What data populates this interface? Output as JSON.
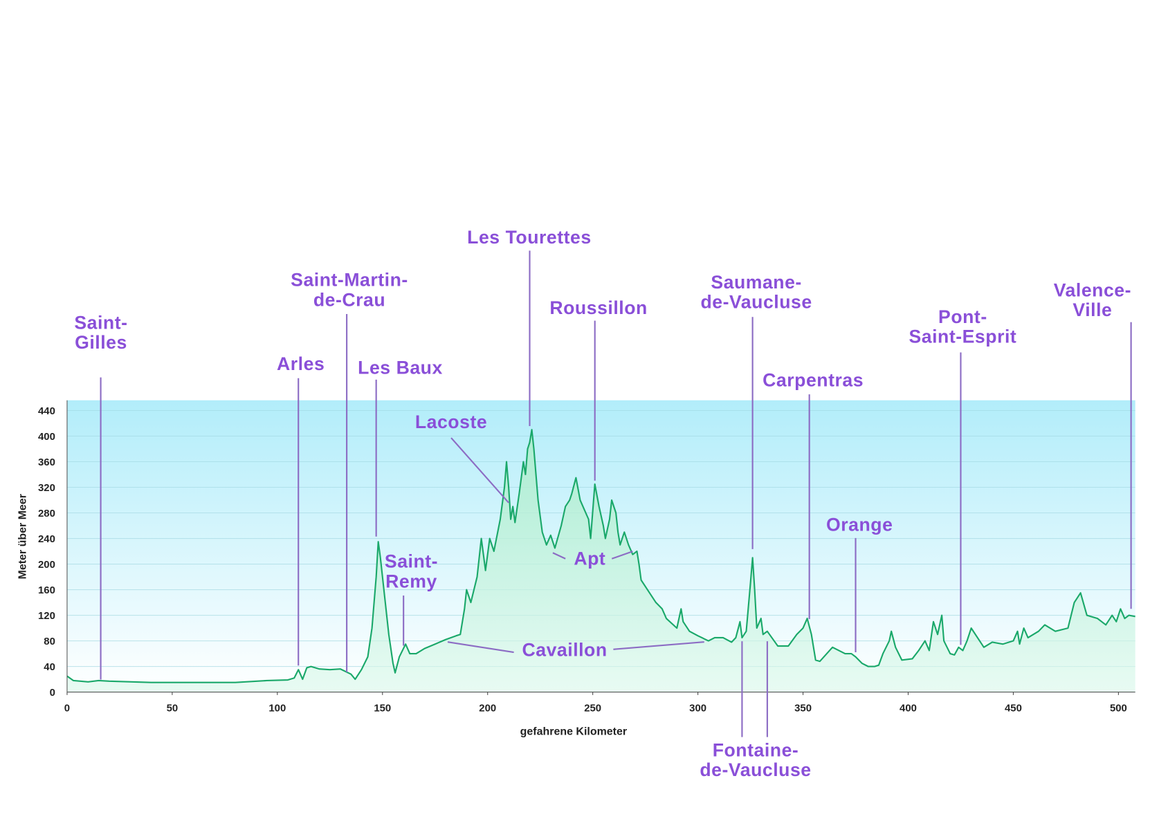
{
  "chart_data": {
    "type": "area",
    "x_label": "gefahrene Kilometer",
    "y_label": "Meter über Meer",
    "xlim": [
      0,
      508
    ],
    "ylim": [
      0,
      456
    ],
    "xticks": [
      0,
      50,
      100,
      150,
      200,
      250,
      300,
      350,
      400,
      450,
      500
    ],
    "yticks": [
      0,
      40,
      80,
      120,
      160,
      200,
      240,
      280,
      320,
      360,
      400,
      440
    ],
    "grid": true,
    "color": "#1aa86a",
    "x": [
      0,
      3,
      10,
      15,
      20,
      40,
      60,
      80,
      95,
      105,
      108,
      110,
      112,
      114,
      116,
      120,
      125,
      130,
      135,
      137,
      140,
      143,
      145,
      147,
      148,
      149,
      151,
      153,
      155,
      156,
      158,
      161,
      163,
      166,
      170,
      175,
      180,
      185,
      187,
      189,
      190,
      192,
      195,
      197,
      199,
      201,
      203,
      206,
      208,
      209,
      210,
      211,
      212,
      213,
      215,
      217,
      218,
      219,
      220,
      221,
      222,
      224,
      226,
      228,
      230,
      232,
      235,
      237,
      239,
      240,
      242,
      244,
      246,
      248,
      249,
      251,
      253,
      255,
      256,
      258,
      259,
      261,
      262,
      263,
      265,
      267,
      269,
      271,
      272,
      273,
      276,
      280,
      283,
      285,
      290,
      292,
      293,
      296,
      300,
      305,
      308,
      312,
      316,
      318,
      320,
      321,
      323,
      325,
      326,
      327,
      328,
      330,
      331,
      333,
      338,
      343,
      347,
      350,
      352,
      354,
      356,
      358,
      364,
      370,
      373,
      375,
      378,
      381,
      384,
      386,
      388,
      391,
      392,
      394,
      397,
      402,
      405,
      408,
      410,
      412,
      414,
      416,
      417,
      420,
      422,
      424,
      426,
      428,
      430,
      434,
      436,
      440,
      445,
      450,
      452,
      453,
      455,
      457,
      462,
      465,
      470,
      476,
      479,
      482,
      485,
      490,
      494,
      497,
      499,
      501,
      503,
      505,
      508
    ],
    "values": [
      25,
      18,
      16,
      18,
      17,
      15,
      15,
      15,
      18,
      19,
      22,
      35,
      20,
      38,
      40,
      36,
      35,
      36,
      28,
      20,
      35,
      55,
      100,
      180,
      235,
      210,
      150,
      90,
      45,
      30,
      55,
      75,
      60,
      60,
      68,
      75,
      82,
      88,
      90,
      130,
      160,
      140,
      180,
      240,
      190,
      240,
      220,
      270,
      320,
      360,
      320,
      270,
      290,
      265,
      310,
      360,
      340,
      380,
      390,
      410,
      380,
      300,
      250,
      230,
      245,
      225,
      260,
      290,
      300,
      310,
      335,
      300,
      285,
      270,
      240,
      325,
      290,
      260,
      240,
      270,
      300,
      280,
      250,
      230,
      250,
      230,
      215,
      220,
      200,
      175,
      160,
      140,
      130,
      115,
      100,
      130,
      110,
      95,
      88,
      80,
      85,
      85,
      78,
      85,
      110,
      85,
      95,
      170,
      210,
      160,
      100,
      115,
      90,
      95,
      72,
      72,
      90,
      100,
      115,
      90,
      50,
      48,
      70,
      60,
      60,
      55,
      45,
      40,
      40,
      42,
      60,
      80,
      95,
      70,
      50,
      52,
      65,
      80,
      65,
      110,
      90,
      120,
      80,
      60,
      58,
      70,
      65,
      80,
      100,
      80,
      70,
      78,
      75,
      80,
      95,
      75,
      100,
      85,
      95,
      105,
      95,
      100,
      140,
      155,
      120,
      115,
      105,
      120,
      110,
      130,
      115,
      120,
      118
    ],
    "annotations": [
      {
        "label": [
          "Saint-",
          "Gilles"
        ],
        "x": [
          16
        ]
      },
      {
        "label": [
          "Arles"
        ],
        "x": [
          110
        ]
      },
      {
        "label": [
          "Saint-Martin-",
          "de-Crau"
        ],
        "x": [
          133
        ]
      },
      {
        "label": [
          "Les Baux"
        ],
        "x": [
          147
        ]
      },
      {
        "label": [
          "Saint-",
          "Remy"
        ],
        "x": [
          160
        ]
      },
      {
        "label": [
          "Lacoste"
        ],
        "x": [
          210
        ]
      },
      {
        "label": [
          "Les Tourettes"
        ],
        "x": [
          220
        ]
      },
      {
        "label": [
          "Roussillon"
        ],
        "x": [
          251
        ]
      },
      {
        "label": [
          "Apt"
        ],
        "x": [
          231,
          269
        ]
      },
      {
        "label": [
          "Cavaillon"
        ],
        "x": [
          181,
          303
        ]
      },
      {
        "label": [
          "Saumane-",
          "de-Vaucluse"
        ],
        "x": [
          326
        ]
      },
      {
        "label": [
          "Fontaine-",
          "de-Vaucluse"
        ],
        "x": [
          321,
          333
        ]
      },
      {
        "label": [
          "Carpentras"
        ],
        "x": [
          353
        ]
      },
      {
        "label": [
          "Orange"
        ],
        "x": [
          375
        ]
      },
      {
        "label": [
          "Pont-",
          "Saint-Esprit"
        ],
        "x": [
          425
        ]
      },
      {
        "label": [
          "Valence-",
          "Ville"
        ],
        "x": [
          506
        ]
      }
    ]
  }
}
